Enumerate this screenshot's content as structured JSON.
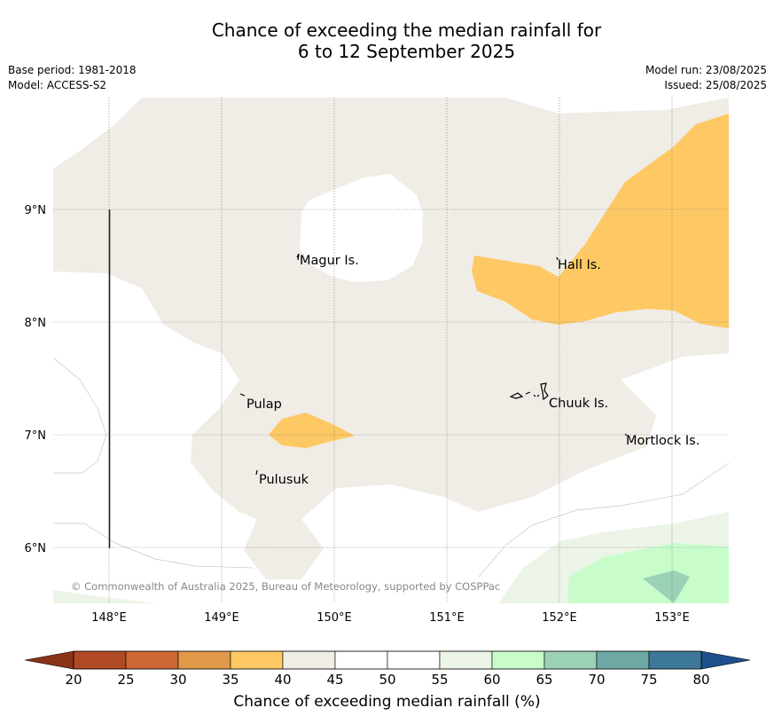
{
  "title": {
    "line1": "Chance of exceeding the median rainfall for",
    "line2": "6 to 12 September 2025"
  },
  "meta": {
    "base_period": "Base period: 1981-2018",
    "model": "Model: ACCESS-S2",
    "model_run": "Model run: 23/08/2025",
    "issued": "Issued: 25/08/2025"
  },
  "map": {
    "lon_ticks": [
      "148°E",
      "149°E",
      "150°E",
      "151°E",
      "152°E",
      "153°E"
    ],
    "lat_ticks": [
      "9°N",
      "8°N",
      "7°N",
      "6°N"
    ],
    "places": [
      "Magur Is.",
      "Hall Is.",
      "Pulap",
      "Chuuk Is.",
      "Mortlock Is.",
      "Pulusuk"
    ],
    "copyright": "© Commonwealth of Australia 2025, Bureau of Meteorology, supported by COSPPac"
  },
  "colorbar": {
    "label": "Chance of exceeding median rainfall (%)",
    "ticks": [
      "20",
      "25",
      "30",
      "35",
      "40",
      "45",
      "50",
      "55",
      "60",
      "65",
      "70",
      "75",
      "80"
    ],
    "colors": [
      "#b04a24",
      "#cd6733",
      "#e2994a",
      "#fec964",
      "#f0ece6",
      "#ffffff",
      "#ffffff",
      "#ebf4e6",
      "#c9fccb",
      "#9bd1b6",
      "#6ea9a6",
      "#3e7899"
    ],
    "low_extend_color": "#8a3218",
    "high_extend_color": "#1c4f8c"
  },
  "legend_colors": {
    "band_40_45": "#f0ece6",
    "band_35_40": "#fec964",
    "band_55_60": "#ebf4e6",
    "band_60_65": "#c9fccb",
    "band_65_70": "#9bd1b6"
  }
}
